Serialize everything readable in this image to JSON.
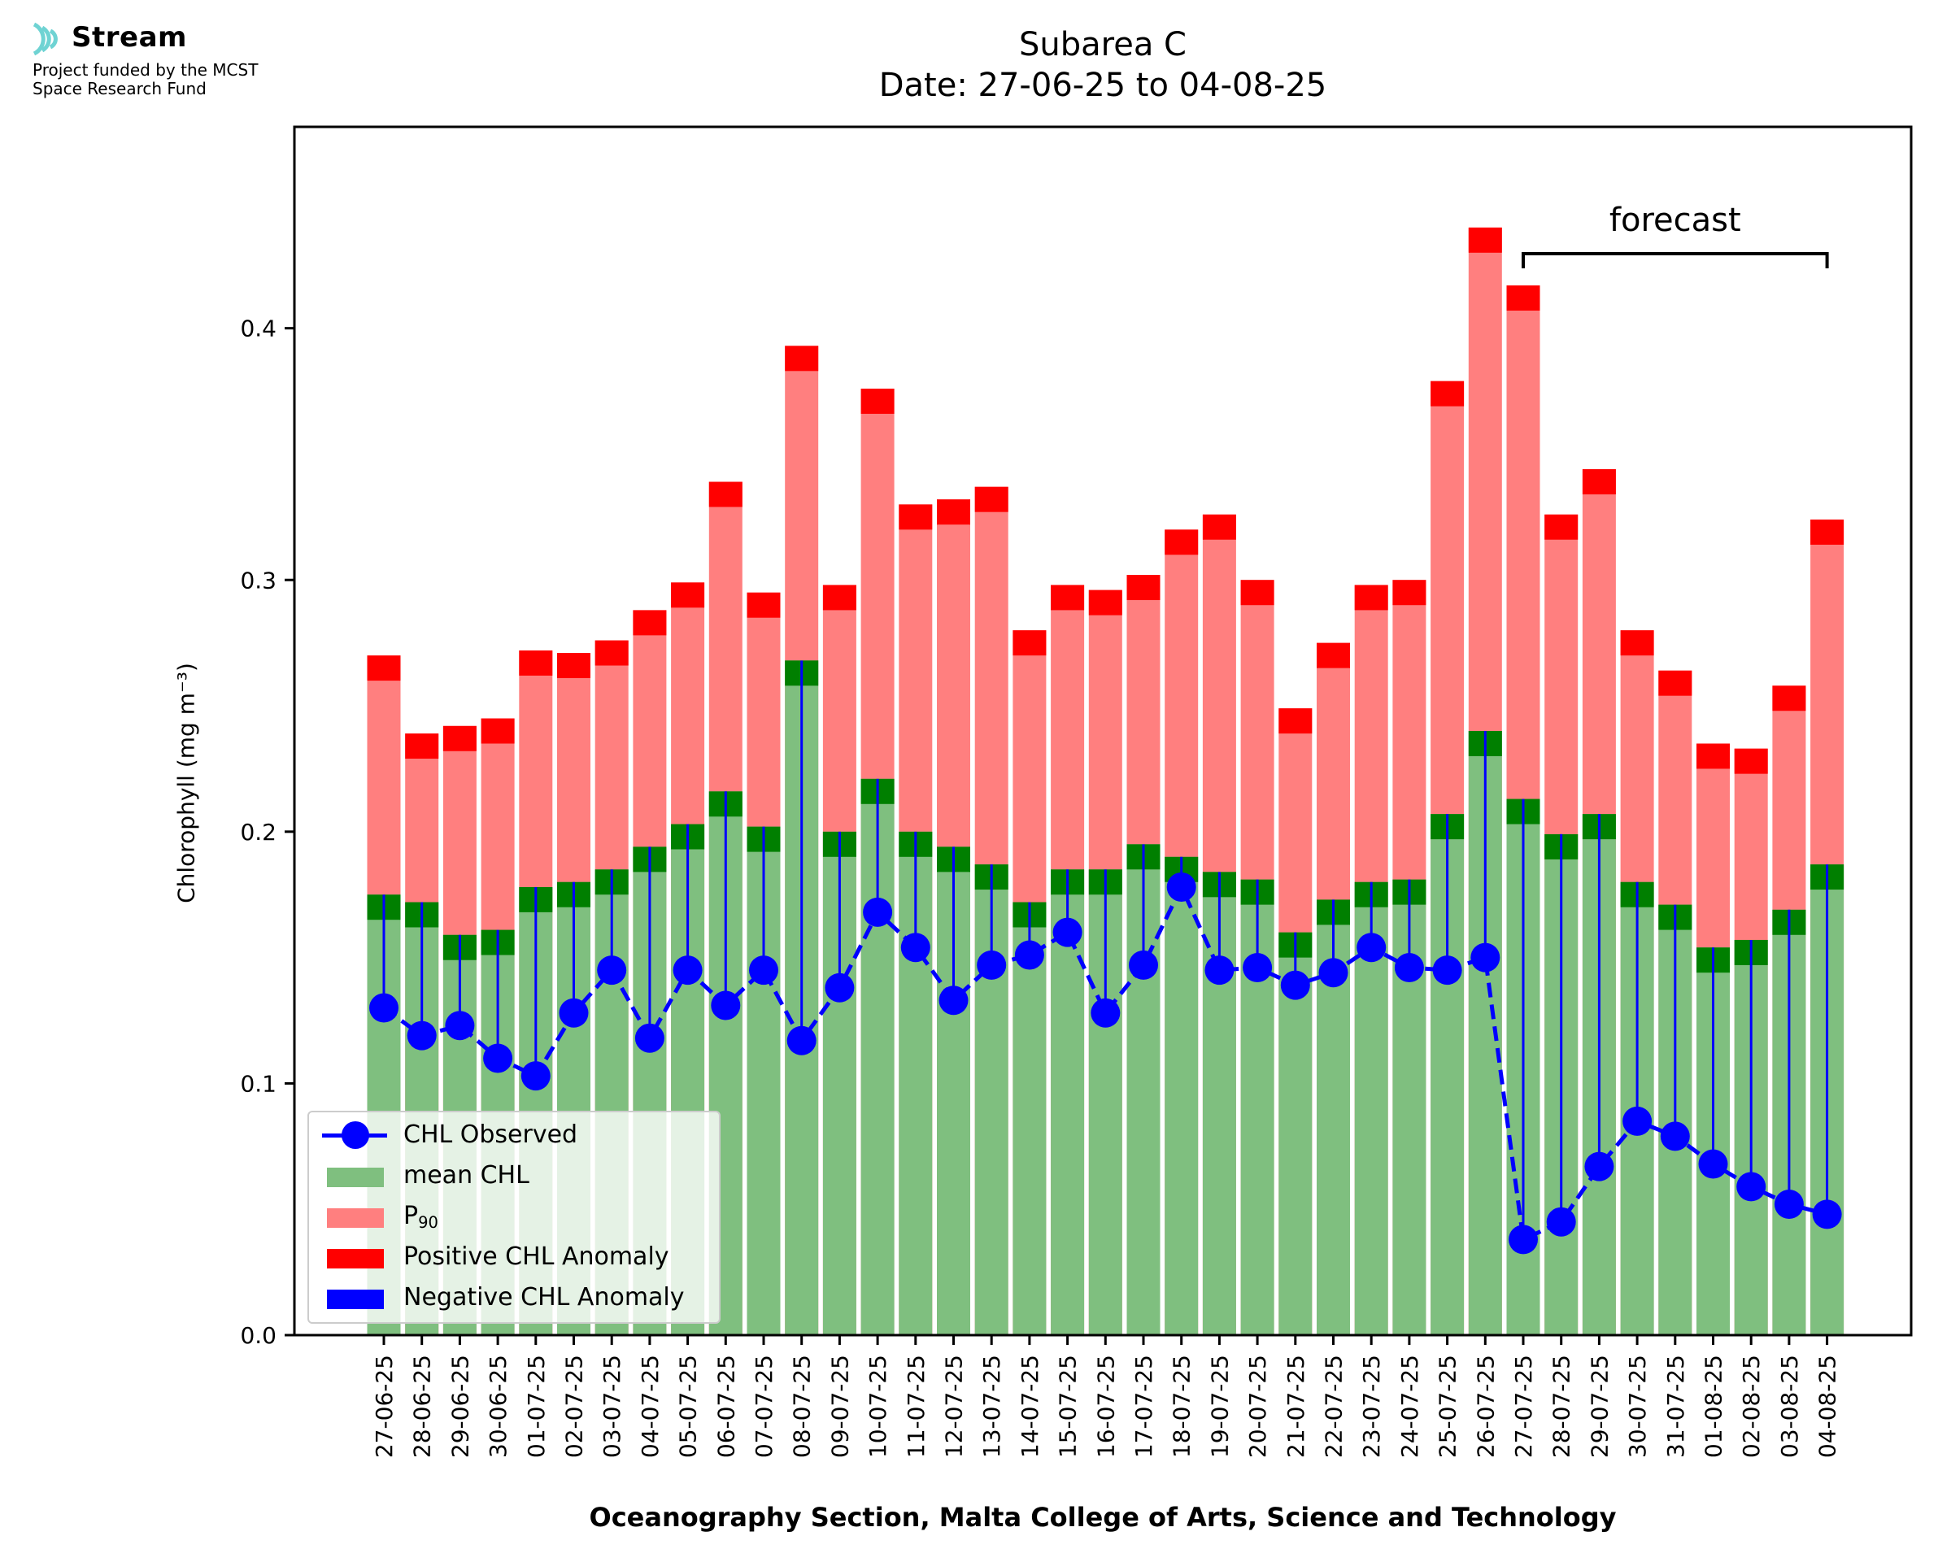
{
  "logo": {
    "title": "Stream",
    "subtitle_line1": "Project funded by the MCST",
    "subtitle_line2": "Space Research Fund",
    "icon": "stream-waves-icon",
    "color": "#6fd3d3"
  },
  "chart_data": {
    "type": "bar",
    "title": "Subarea C",
    "subtitle": "Date: 27-06-25 to 04-08-25",
    "xlabel": "Oceanography Section, Malta College of Arts, Science and Technology",
    "ylabel": "Chlorophyll (mg m⁻³)",
    "ylim": [
      0,
      0.48
    ],
    "yticks": [
      "0.0",
      "0.1",
      "0.2",
      "0.3",
      "0.4"
    ],
    "categories": [
      "27-06-25",
      "28-06-25",
      "29-06-25",
      "30-06-25",
      "01-07-25",
      "02-07-25",
      "03-07-25",
      "04-07-25",
      "05-07-25",
      "06-07-25",
      "07-07-25",
      "08-07-25",
      "09-07-25",
      "10-07-25",
      "11-07-25",
      "12-07-25",
      "13-07-25",
      "14-07-25",
      "15-07-25",
      "16-07-25",
      "17-07-25",
      "18-07-25",
      "19-07-25",
      "20-07-25",
      "21-07-25",
      "22-07-25",
      "23-07-25",
      "24-07-25",
      "25-07-25",
      "26-07-25",
      "27-07-25",
      "28-07-25",
      "29-07-25",
      "30-07-25",
      "31-07-25",
      "01-08-25",
      "02-08-25",
      "03-08-25",
      "04-08-25"
    ],
    "series": [
      {
        "name": "mean CHL",
        "color": "#7fbf7f",
        "values": [
          0.175,
          0.172,
          0.159,
          0.161,
          0.178,
          0.18,
          0.185,
          0.194,
          0.203,
          0.216,
          0.202,
          0.268,
          0.2,
          0.221,
          0.2,
          0.194,
          0.187,
          0.172,
          0.185,
          0.185,
          0.195,
          0.19,
          0.184,
          0.181,
          0.16,
          0.173,
          0.18,
          0.181,
          0.207,
          0.24,
          0.213,
          0.199,
          0.207,
          0.18,
          0.171,
          0.154,
          0.157,
          0.169,
          0.187
        ]
      },
      {
        "name": "P₉₀",
        "color": "#ff7f7f",
        "values": [
          0.27,
          0.239,
          0.242,
          0.245,
          0.272,
          0.271,
          0.276,
          0.288,
          0.299,
          0.339,
          0.295,
          0.393,
          0.298,
          0.376,
          0.33,
          0.332,
          0.337,
          0.28,
          0.298,
          0.296,
          0.302,
          0.32,
          0.326,
          0.3,
          0.249,
          0.275,
          0.298,
          0.3,
          0.379,
          0.44,
          0.417,
          0.326,
          0.344,
          0.28,
          0.264,
          0.235,
          0.233,
          0.258,
          0.324
        ]
      },
      {
        "name": "CHL Observed",
        "color": "#0000ff",
        "style": "dashed-line-with-circles",
        "values": [
          0.13,
          0.119,
          0.123,
          0.11,
          0.103,
          0.128,
          0.145,
          0.118,
          0.145,
          0.131,
          0.145,
          0.117,
          0.138,
          0.168,
          0.154,
          0.133,
          0.147,
          0.151,
          0.16,
          0.128,
          0.147,
          0.178,
          0.145,
          0.146,
          0.139,
          0.144,
          0.154,
          0.146,
          0.145,
          0.15,
          0.038,
          0.045,
          0.067,
          0.085,
          0.079,
          0.068,
          0.059,
          0.052,
          0.048
        ]
      }
    ],
    "anomaly_cap_height": 0.01,
    "anomaly_colors": {
      "mean_cap": "#007f00",
      "positive": "#ff0000",
      "negative": "#0000ff"
    },
    "legend": {
      "placement": "lower-left",
      "entries": [
        "CHL Observed",
        "mean CHL",
        "P",
        "Positive CHL Anomaly",
        "Negative CHL Anomaly"
      ],
      "p90_label_base": "P",
      "p90_label_sub": "90"
    },
    "annotation": {
      "text": "forecast",
      "from_category": "27-07-25",
      "to_category": "04-08-25"
    },
    "grid": false
  }
}
